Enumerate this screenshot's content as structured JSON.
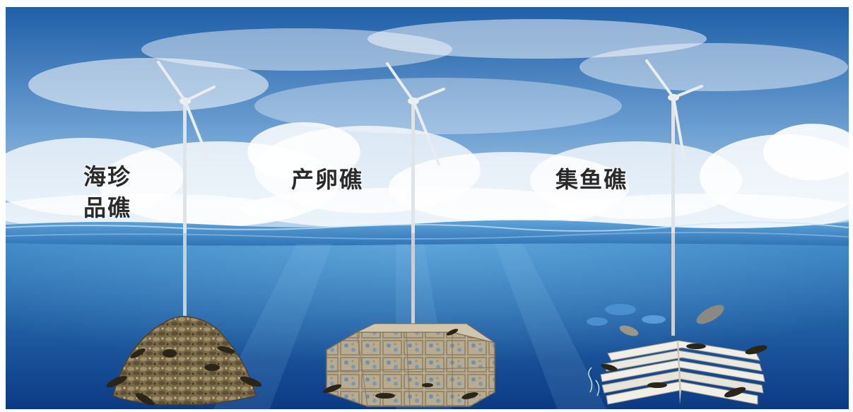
{
  "labels": {
    "reef1_line1": "海珍",
    "reef1_line2": "品礁",
    "reef2": "产卵礁",
    "reef3": "集鱼礁"
  },
  "colors": {
    "sky_top": "#1f5fa8",
    "sky_bottom": "#a9cbe8",
    "cloud": "#ffffff",
    "surface": "#3f86c4",
    "water_top": "#2a78b8",
    "water_bottom": "#0d3f8a",
    "rock_reef": "#7a6a48",
    "cube_reef": "#b7a98e",
    "slab_reef": "#e9e6dc",
    "fish_dark": "#2b2418",
    "fish_blue": "#4a8fd0",
    "label_text": "#2a2a2a"
  },
  "icons": [
    "wind-turbine-icon",
    "fish-icon",
    "rock-pile-icon",
    "cube-reef-icon",
    "slab-reef-icon"
  ]
}
